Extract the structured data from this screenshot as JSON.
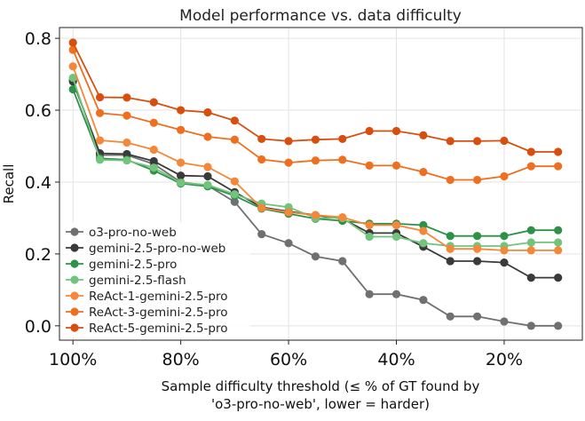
{
  "chart_data": {
    "type": "line",
    "title": "Model performance vs. data difficulty",
    "xlabel_lines": [
      "Sample difficulty threshold (≤ % of GT found by",
      "'o3-pro-no-web', lower = harder)"
    ],
    "ylabel": "Recall",
    "xlim": [
      102.5,
      5.5
    ],
    "ylim": [
      -0.04,
      0.83
    ],
    "x_inverted": true,
    "grid": true,
    "legend_position": "lower-left",
    "xticks": [
      {
        "value": 100,
        "label": "100%"
      },
      {
        "value": 80,
        "label": "80%"
      },
      {
        "value": 60,
        "label": "60%"
      },
      {
        "value": 40,
        "label": "40%"
      },
      {
        "value": 20,
        "label": "20%"
      }
    ],
    "yticks": [
      {
        "value": 0.0,
        "label": "0.0"
      },
      {
        "value": 0.2,
        "label": "0.2"
      },
      {
        "value": 0.4,
        "label": "0.4"
      },
      {
        "value": 0.6,
        "label": "0.6"
      },
      {
        "value": 0.8,
        "label": "0.8"
      }
    ],
    "x": [
      100,
      95,
      90,
      85,
      80,
      75,
      70,
      65,
      60,
      55,
      50,
      45,
      40,
      35,
      30,
      25,
      20,
      15,
      10
    ],
    "series": [
      {
        "name": "o3-pro-no-web",
        "color": "#707070",
        "values": [
          0.685,
          0.475,
          0.475,
          0.45,
          0.4,
          0.39,
          0.345,
          0.255,
          0.23,
          0.193,
          0.18,
          0.088,
          0.088,
          0.072,
          0.026,
          0.026,
          0.012,
          0.0,
          0.0
        ]
      },
      {
        "name": "gemini-2.5-pro-no-web",
        "color": "#3a3a3a",
        "values": [
          0.68,
          0.48,
          0.478,
          0.458,
          0.418,
          0.416,
          0.372,
          0.33,
          0.318,
          0.308,
          0.298,
          0.258,
          0.258,
          0.22,
          0.18,
          0.18,
          0.176,
          0.134,
          0.134
        ]
      },
      {
        "name": "gemini-2.5-pro",
        "color": "#2e9148",
        "values": [
          0.658,
          0.466,
          0.462,
          0.432,
          0.396,
          0.388,
          0.362,
          0.326,
          0.312,
          0.298,
          0.292,
          0.284,
          0.284,
          0.28,
          0.25,
          0.25,
          0.25,
          0.266,
          0.266
        ]
      },
      {
        "name": "gemini-2.5-flash",
        "color": "#72c47c",
        "values": [
          0.69,
          0.462,
          0.46,
          0.44,
          0.398,
          0.392,
          0.366,
          0.34,
          0.33,
          0.3,
          0.3,
          0.248,
          0.248,
          0.23,
          0.222,
          0.222,
          0.222,
          0.232,
          0.232
        ]
      },
      {
        "name": "ReAct-1-gemini-2.5-pro",
        "color": "#f4883a",
        "values": [
          0.722,
          0.516,
          0.51,
          0.49,
          0.454,
          0.442,
          0.402,
          0.328,
          0.316,
          0.308,
          0.302,
          0.28,
          0.28,
          0.264,
          0.214,
          0.214,
          0.21,
          0.21,
          0.21
        ]
      },
      {
        "name": "ReAct-3-gemini-2.5-pro",
        "color": "#ee6f20",
        "values": [
          0.768,
          0.592,
          0.585,
          0.565,
          0.545,
          0.526,
          0.518,
          0.463,
          0.454,
          0.46,
          0.462,
          0.446,
          0.446,
          0.428,
          0.406,
          0.406,
          0.416,
          0.444,
          0.444
        ]
      },
      {
        "name": "ReAct-5-gemini-2.5-pro",
        "color": "#d84e0e",
        "values": [
          0.788,
          0.636,
          0.635,
          0.622,
          0.6,
          0.594,
          0.571,
          0.52,
          0.514,
          0.518,
          0.52,
          0.542,
          0.542,
          0.53,
          0.514,
          0.514,
          0.515,
          0.484,
          0.484
        ]
      }
    ]
  }
}
